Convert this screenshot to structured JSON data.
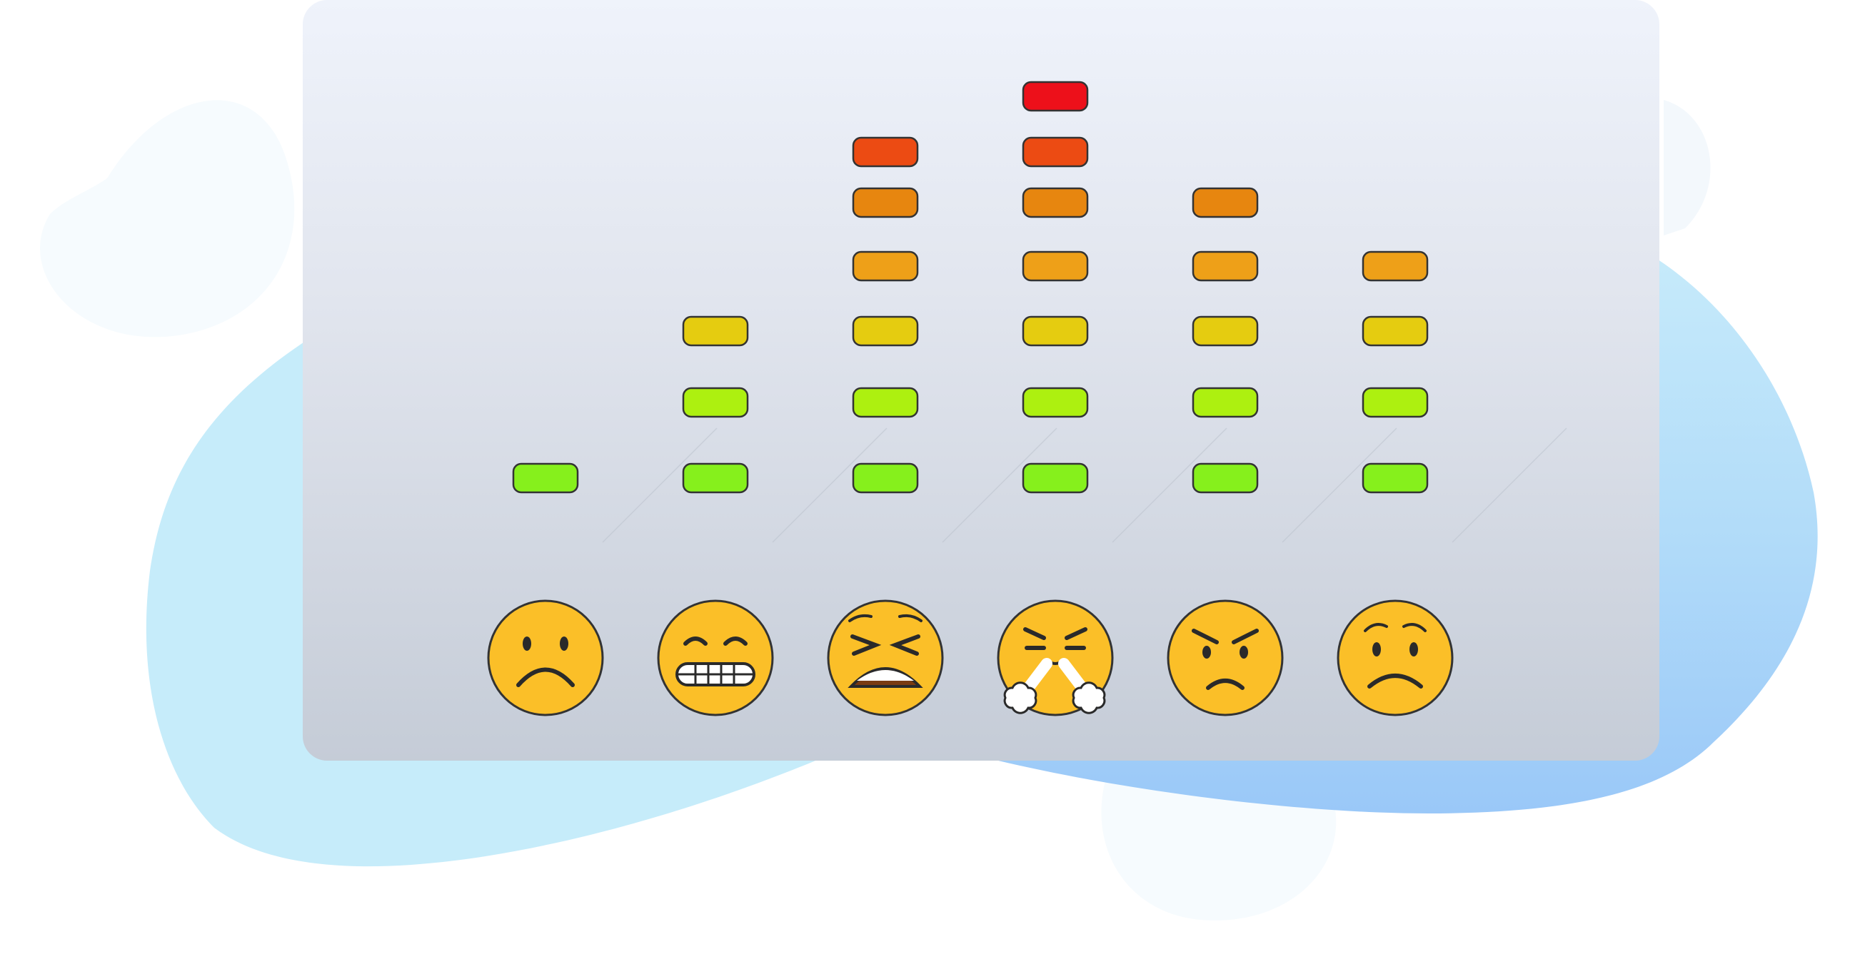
{
  "colors": {
    "background": "#ffffff",
    "blob_light": "#c6ecfa",
    "blob_blue": "#a0ccf9",
    "blob_faint": "#f7fcfe",
    "face": "#fbbf28",
    "outline": "#333333"
  },
  "meter": {
    "max_level": 8,
    "level_colors": [
      "#86f01c",
      "#adf010",
      "#e5cc10",
      "#eea018",
      "#e7860f",
      "#ec4b13",
      "#ed101a"
    ],
    "columns": [
      {
        "emoji": "frowning-face",
        "level": 1
      },
      {
        "emoji": "grimacing-face",
        "level": 3
      },
      {
        "emoji": "tired-face",
        "level": 6
      },
      {
        "emoji": "face-with-steam-from-nose",
        "level": 7
      },
      {
        "emoji": "angry-face",
        "level": 5
      },
      {
        "emoji": "worried-face",
        "level": 4
      }
    ]
  }
}
